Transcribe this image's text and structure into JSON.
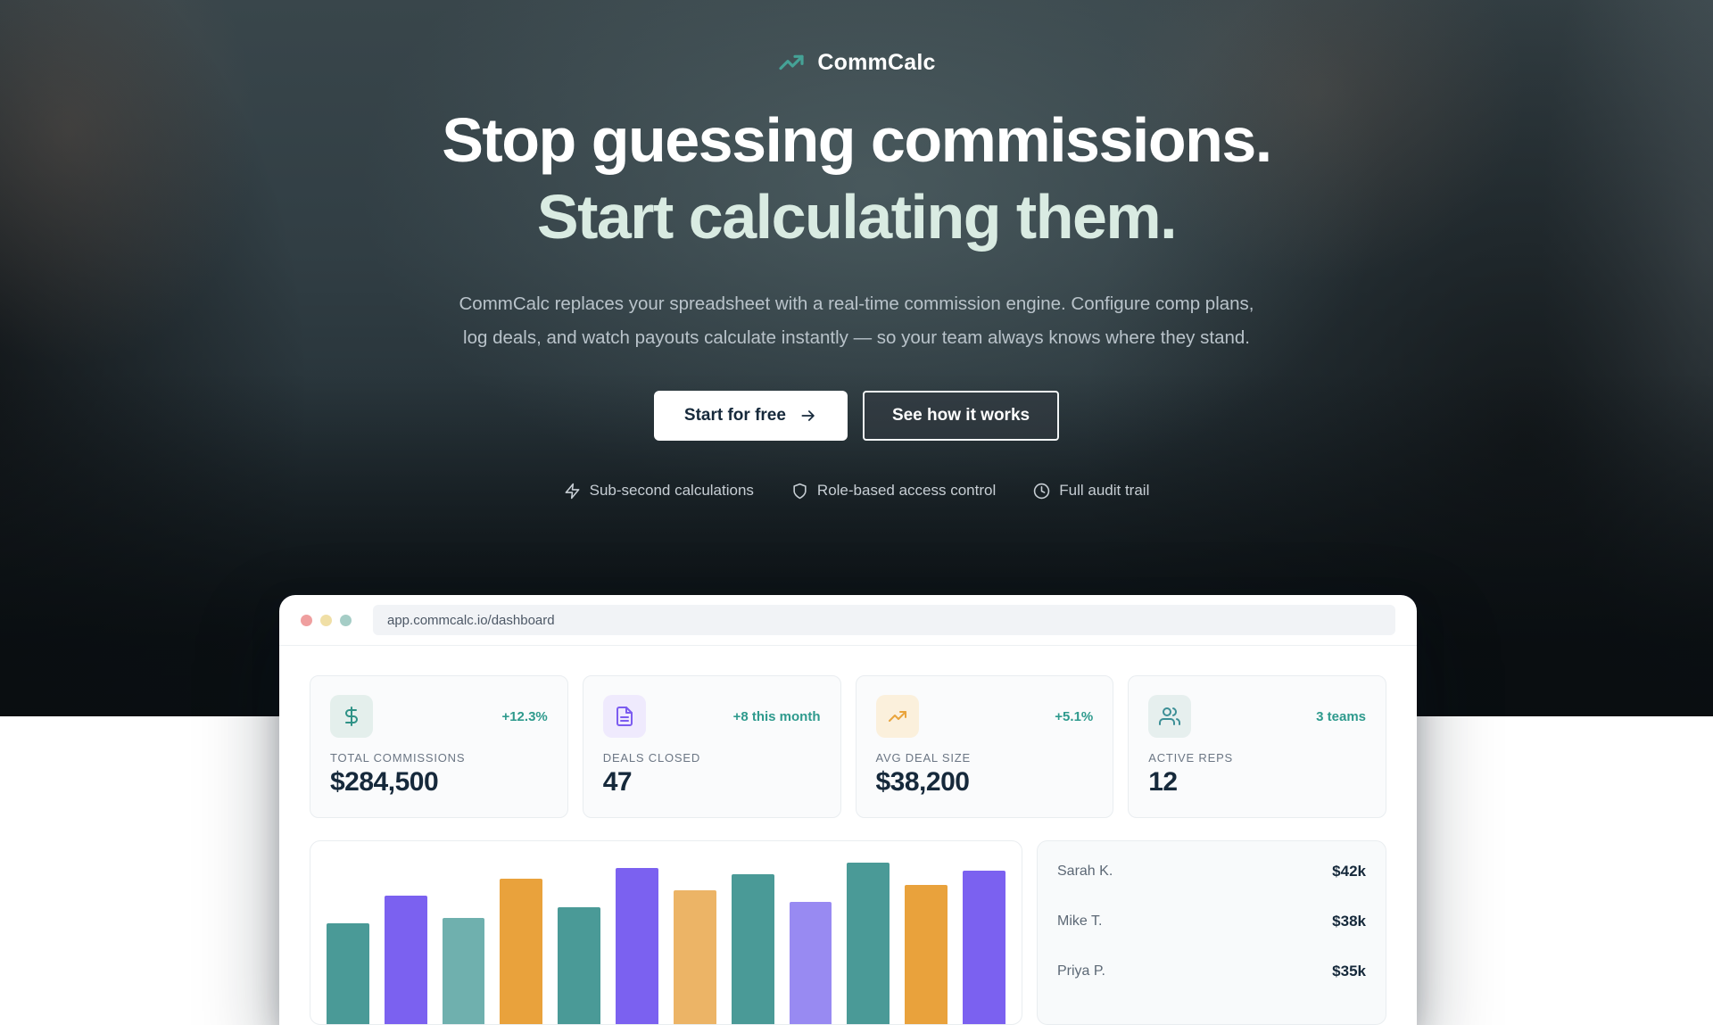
{
  "colors": {
    "brand_teal": "#45a296",
    "headline_mint": "#d9ebe2",
    "change_teal": "#2e9a8d",
    "value_navy": "#16293b",
    "label_gray": "#6b7684",
    "name_gray": "#5c6875"
  },
  "hero": {
    "brand": "CommCalc",
    "headline_line1": "Stop guessing commissions.",
    "headline_line2": "Start calculating them.",
    "subtitle": "CommCalc replaces your spreadsheet with a real-time commission engine. Configure comp plans, log deals, and watch payouts calculate instantly — so your team always knows where they stand.",
    "primary_cta": "Start for free",
    "secondary_cta": "See how it works",
    "features": [
      {
        "icon": "zap-icon",
        "label": "Sub-second calculations"
      },
      {
        "icon": "shield-icon",
        "label": "Role-based access control"
      },
      {
        "icon": "clock-icon",
        "label": "Full audit trail"
      }
    ]
  },
  "browser": {
    "url": "app.commcalc.io/dashboard",
    "traffic_lights": [
      "#ef9f9f",
      "#f0dfa6",
      "#a5cdc6"
    ],
    "stats": [
      {
        "icon": "dollar-icon",
        "icon_color": "#2e9286",
        "icon_bg": "#e4efec",
        "change": "+12.3%",
        "label": "TOTAL COMMISSIONS",
        "value": "$284,500"
      },
      {
        "icon": "document-icon",
        "icon_color": "#7c5cf0",
        "icon_bg": "#efeafd",
        "change": "+8 this month",
        "label": "DEALS CLOSED",
        "value": "47"
      },
      {
        "icon": "trending-up-icon",
        "icon_color": "#e9a43c",
        "icon_bg": "#fbf0dc",
        "change": "+5.1%",
        "label": "AVG DEAL SIZE",
        "value": "$38,200"
      },
      {
        "icon": "users-icon",
        "icon_color": "#3c8f96",
        "icon_bg": "#e6efee",
        "change": "3 teams",
        "label": "ACTIVE REPS",
        "value": "12"
      }
    ],
    "chart_data": {
      "type": "bar",
      "values": [
        43,
        74,
        49,
        93,
        61,
        105,
        80,
        98,
        67,
        111,
        86,
        102
      ],
      "colors": [
        "#4a9a97",
        "#7b61f0",
        "#6fb0ae",
        "#e9a23c",
        "#4a9a97",
        "#7b61f0",
        "#ecb466",
        "#4a9a97",
        "#988af2",
        "#4a9a97",
        "#e9a23c",
        "#7b61f0"
      ],
      "title": "",
      "xlabel": "",
      "ylabel": "",
      "x_labels_visible": false,
      "gridlines": false,
      "legend": false
    },
    "leaderboard": [
      {
        "name": "Sarah K.",
        "value": "$42k"
      },
      {
        "name": "Mike T.",
        "value": "$38k"
      },
      {
        "name": "Priya P.",
        "value": "$35k"
      }
    ]
  }
}
